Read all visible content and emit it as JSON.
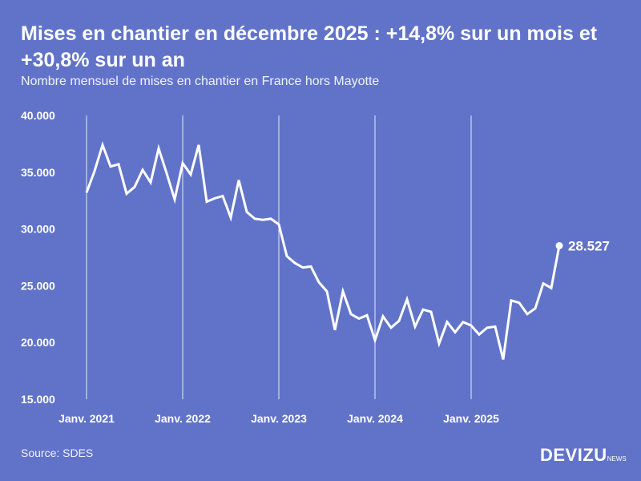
{
  "title": "Mises en chantier en décembre 2025 : +14,8% sur un mois et +30,8% sur un an",
  "subtitle": "Nombre mensuel de mises en chantier en France hors Mayotte",
  "source": "Source: SDES",
  "logo": {
    "main": "DEVIZU",
    "suffix": "NEWS"
  },
  "colors": {
    "background": "#6173c9",
    "line": "#ffffff"
  },
  "chart_data": {
    "type": "line",
    "title": "Mises en chantier en décembre 2025 : +14,8% sur un mois et +30,8% sur un an",
    "subtitle": "Nombre mensuel de mises en chantier en France hors Mayotte",
    "ylim": [
      15000,
      40000
    ],
    "yticks": [
      15000,
      20000,
      25000,
      30000,
      35000,
      40000
    ],
    "ytick_labels": [
      "15.000",
      "20.000",
      "25.000",
      "30.000",
      "35.000",
      "40.000"
    ],
    "xtick_labels": [
      "Janv. 2021",
      "Janv. 2022",
      "Janv. 2023",
      "Janv. 2024",
      "Janv. 2025"
    ],
    "x_start": "2021-01",
    "x_end": "2025-12",
    "grid": "vertical lines at each January",
    "last_value_label": "28.527",
    "values": [
      33200,
      35100,
      37400,
      35500,
      35700,
      33100,
      33700,
      35200,
      34100,
      37100,
      34900,
      32600,
      35800,
      34800,
      37400,
      32400,
      32700,
      32900,
      31000,
      34300,
      31500,
      30900,
      30800,
      30900,
      30400,
      27600,
      27000,
      26600,
      26700,
      25300,
      24500,
      21100,
      24500,
      22500,
      22100,
      22400,
      20200,
      22300,
      21300,
      21900,
      23800,
      21400,
      22900,
      22700,
      19900,
      21800,
      20900,
      21800,
      21500,
      20700,
      21300,
      21400,
      18500,
      23700,
      23500,
      22500,
      23000,
      25200,
      24800,
      28527
    ]
  }
}
